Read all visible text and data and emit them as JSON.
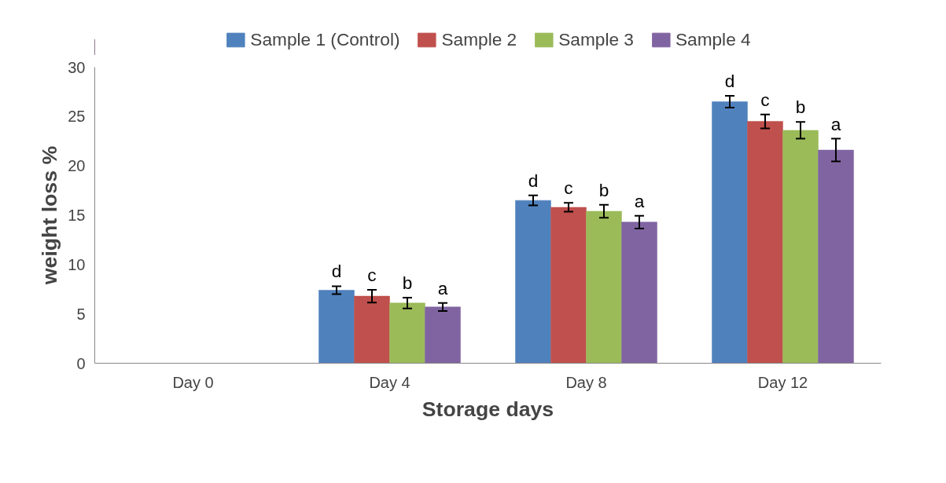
{
  "chart_data": {
    "type": "bar",
    "xlabel": "Storage days",
    "ylabel": "weight loss %",
    "categories": [
      "Day 0",
      "Day 4",
      "Day 8",
      "Day 12"
    ],
    "series": [
      {
        "name": "Sample 1 (Control)",
        "color": "#4f81bd",
        "values": [
          0,
          7.4,
          16.5,
          26.5
        ],
        "errors": [
          null,
          0.4,
          0.5,
          0.6
        ],
        "value_labels": [
          null,
          "d",
          "d",
          "d"
        ]
      },
      {
        "name": "Sample 2",
        "color": "#c0504d",
        "values": [
          0,
          6.8,
          15.8,
          24.5
        ],
        "errors": [
          null,
          0.65,
          0.45,
          0.7
        ],
        "value_labels": [
          null,
          "c",
          "c",
          "c"
        ]
      },
      {
        "name": "Sample 3",
        "color": "#9bbb59",
        "values": [
          0,
          6.1,
          15.4,
          23.6
        ],
        "errors": [
          null,
          0.55,
          0.65,
          0.85
        ],
        "value_labels": [
          null,
          "b",
          "b",
          "b"
        ]
      },
      {
        "name": "Sample 4",
        "color": "#8064a2",
        "values": [
          0,
          5.7,
          14.3,
          21.6
        ],
        "errors": [
          null,
          0.4,
          0.65,
          1.15
        ],
        "value_labels": [
          null,
          "a",
          "a",
          "a"
        ]
      }
    ],
    "ylim": [
      0,
      30
    ],
    "yticks": [
      0,
      5,
      10,
      15,
      20,
      25,
      30
    ],
    "grid": false,
    "legend": "top"
  }
}
